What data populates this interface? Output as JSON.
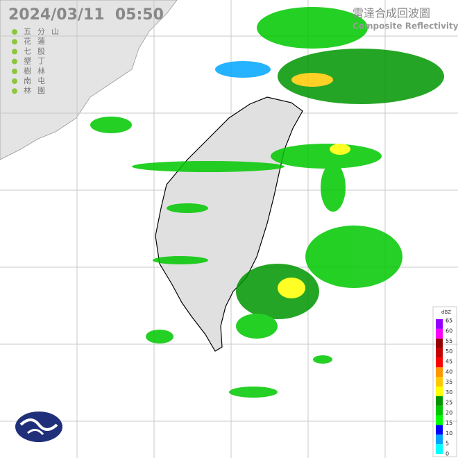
{
  "header": {
    "datetime": "2024/03/11  05:50",
    "title": "雷達合成回波圖",
    "subtitle": "Composite Reflectivity"
  },
  "stations": [
    "五分山",
    "花蓮",
    "七股",
    "墾丁",
    "樹林",
    "南屯",
    "林園"
  ],
  "colorbar": {
    "unit": "dBZ",
    "ticks": [
      0,
      5,
      10,
      15,
      20,
      25,
      30,
      35,
      40,
      45,
      50,
      55,
      60,
      65
    ],
    "colors": [
      "#00ffff",
      "#00a5ff",
      "#0000ff",
      "#00ff00",
      "#00c800",
      "#009600",
      "#ffff00",
      "#ffc800",
      "#ff9600",
      "#ff0000",
      "#c80000",
      "#960000",
      "#ff00ff",
      "#9600ff"
    ]
  }
}
